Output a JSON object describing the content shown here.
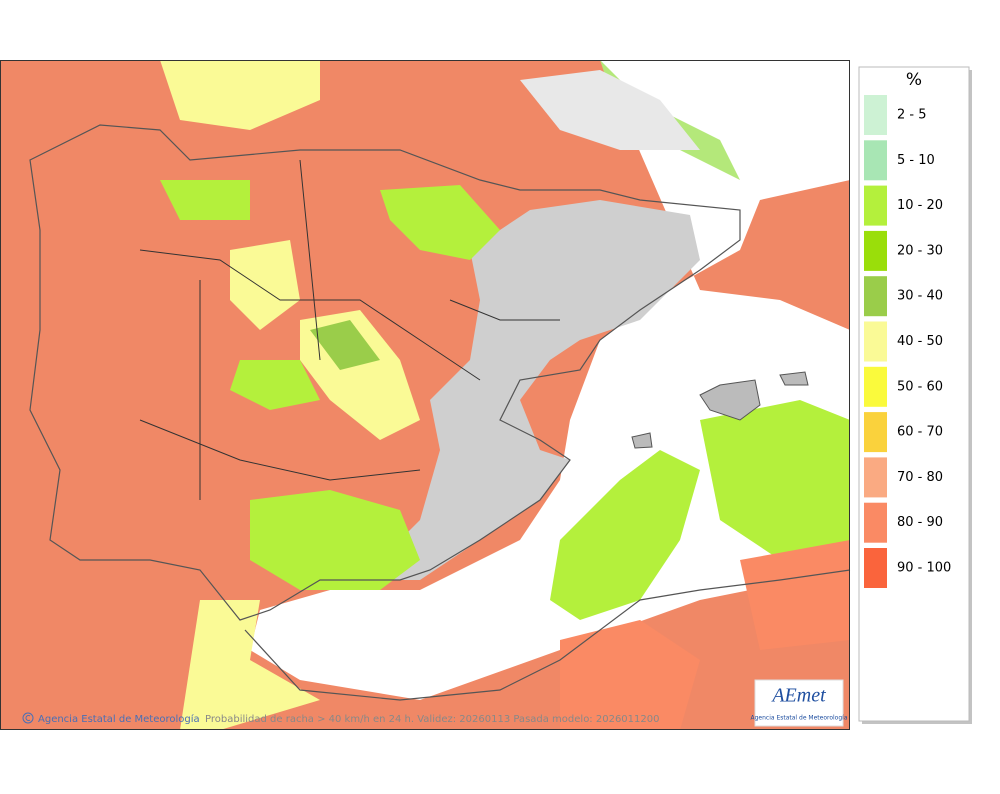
{
  "legend": {
    "title": "%",
    "items": [
      {
        "label": "2 - 5",
        "color": "#cdf2d4"
      },
      {
        "label": "5 - 10",
        "color": "#a8e6b4"
      },
      {
        "label": "10 - 20",
        "color": "#b4f03c"
      },
      {
        "label": "20 - 30",
        "color": "#9ade0a"
      },
      {
        "label": "30 - 40",
        "color": "#9acd4a"
      },
      {
        "label": "40 - 50",
        "color": "#fafa96"
      },
      {
        "label": "50 - 60",
        "color": "#fafa3c"
      },
      {
        "label": "60 - 70",
        "color": "#fad23c"
      },
      {
        "label": "70 - 80",
        "color": "#faaa82"
      },
      {
        "label": "80 - 90",
        "color": "#fa8a64"
      },
      {
        "label": "90 - 100",
        "color": "#fa643c"
      }
    ]
  },
  "footer": {
    "credit": "Agencia Estatal de Meteorología",
    "caption": "Probabilidad de racha > 40 km/h en 24 h. Validez: 20260113 Pasada modelo: 2026011200"
  },
  "logo": {
    "name": "AEmet",
    "subtitle": "Agencia Estatal de Meteorología"
  }
}
